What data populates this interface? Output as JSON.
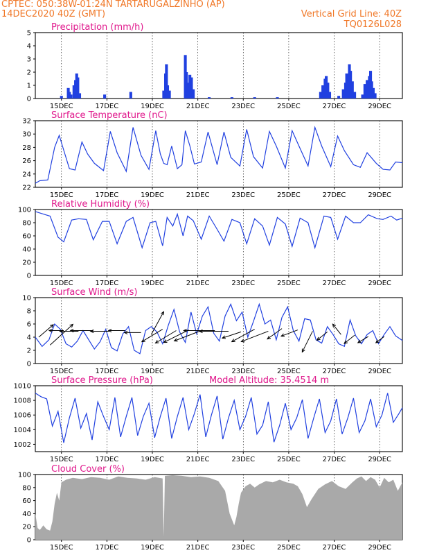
{
  "header": {
    "line1": "CPTEC:   050:38W-01:24N  TARTARUGALZINHO (AP)",
    "line2": "14DEC2020 40Z (GMT)",
    "grid_note": "Vertical Grid Line: 40Z",
    "code": "TQ0126L028"
  },
  "colors": {
    "line": "#2040e0",
    "bar": "#2040e0",
    "cloud": "#a9a9a9",
    "title": "#e0188c",
    "header": "#f07828"
  },
  "chart_data": [
    {
      "id": "precip",
      "type": "bar",
      "title": "Precipitation (mm/h)",
      "ylim": [
        0,
        5
      ],
      "yticks": [
        "0",
        "1",
        "2",
        "3",
        "4",
        "5"
      ],
      "xticks": [
        "15DEC",
        "17DEC",
        "19DEC",
        "21DEC",
        "23DEC",
        "25DEC",
        "27DEC",
        "29DEC"
      ],
      "xrange": [
        -1.15,
        15
      ],
      "x_unit": "days from 15DEC",
      "step_hours": 3,
      "events": [
        {
          "x": 0.0,
          "v": 0.2
        },
        {
          "x": 0.3,
          "v": 0.8
        },
        {
          "x": 0.35,
          "v": 0.5
        },
        {
          "x": 0.42,
          "v": 0.3
        },
        {
          "x": 0.55,
          "v": 1.0
        },
        {
          "x": 0.62,
          "v": 1.4
        },
        {
          "x": 0.67,
          "v": 1.9
        },
        {
          "x": 0.72,
          "v": 1.6
        },
        {
          "x": 0.8,
          "v": 0.4
        },
        {
          "x": 1.9,
          "v": 0.3
        },
        {
          "x": 3.05,
          "v": 0.5
        },
        {
          "x": 4.5,
          "v": 0.6
        },
        {
          "x": 4.58,
          "v": 1.9
        },
        {
          "x": 4.62,
          "v": 2.6
        },
        {
          "x": 4.67,
          "v": 1.0
        },
        {
          "x": 4.75,
          "v": 0.6
        },
        {
          "x": 5.45,
          "v": 3.3
        },
        {
          "x": 5.5,
          "v": 2.0
        },
        {
          "x": 5.55,
          "v": 1.1
        },
        {
          "x": 5.6,
          "v": 1.2
        },
        {
          "x": 5.65,
          "v": 1.8
        },
        {
          "x": 5.72,
          "v": 1.6
        },
        {
          "x": 5.8,
          "v": 0.7
        },
        {
          "x": 6.5,
          "v": 0.1
        },
        {
          "x": 7.5,
          "v": 0.1
        },
        {
          "x": 8.5,
          "v": 0.1
        },
        {
          "x": 9.5,
          "v": 0.1
        },
        {
          "x": 11.4,
          "v": 0.5
        },
        {
          "x": 11.5,
          "v": 1.0
        },
        {
          "x": 11.6,
          "v": 1.5
        },
        {
          "x": 11.65,
          "v": 1.7
        },
        {
          "x": 11.72,
          "v": 1.2
        },
        {
          "x": 11.8,
          "v": 0.5
        },
        {
          "x": 12.2,
          "v": 0.2
        },
        {
          "x": 12.4,
          "v": 0.7
        },
        {
          "x": 12.5,
          "v": 1.2
        },
        {
          "x": 12.55,
          "v": 1.9
        },
        {
          "x": 12.62,
          "v": 1.4
        },
        {
          "x": 12.67,
          "v": 2.6
        },
        {
          "x": 12.72,
          "v": 2.1
        },
        {
          "x": 12.8,
          "v": 1.3
        },
        {
          "x": 12.9,
          "v": 0.5
        },
        {
          "x": 13.25,
          "v": 0.3
        },
        {
          "x": 13.35,
          "v": 1.1
        },
        {
          "x": 13.45,
          "v": 1.4
        },
        {
          "x": 13.5,
          "v": 1.0
        },
        {
          "x": 13.55,
          "v": 1.7
        },
        {
          "x": 13.6,
          "v": 2.1
        },
        {
          "x": 13.65,
          "v": 1.3
        },
        {
          "x": 13.72,
          "v": 0.8
        },
        {
          "x": 13.8,
          "v": 0.4
        }
      ]
    },
    {
      "id": "temp",
      "type": "line",
      "title": "Surface Temperature (nC)",
      "ylim": [
        22,
        32
      ],
      "yticks": [
        "22",
        "24",
        "26",
        "28",
        "30",
        "32"
      ],
      "xticks": [
        "15DEC",
        "17DEC",
        "19DEC",
        "21DEC",
        "23DEC",
        "25DEC",
        "27DEC",
        "29DEC"
      ],
      "xrange": [
        -1.15,
        15
      ],
      "x": [
        -1.15,
        -0.95,
        -0.6,
        -0.3,
        -0.1,
        0.15,
        0.35,
        0.6,
        0.9,
        1.15,
        1.45,
        1.85,
        2.15,
        2.45,
        2.85,
        3.15,
        3.5,
        3.85,
        4.15,
        4.35,
        4.5,
        4.65,
        4.85,
        5.1,
        5.3,
        5.45,
        5.65,
        5.85,
        6.15,
        6.45,
        6.85,
        7.15,
        7.45,
        7.85,
        8.15,
        8.45,
        8.85,
        9.15,
        9.45,
        9.85,
        10.15,
        10.45,
        10.85,
        11.15,
        11.45,
        11.85,
        12.15,
        12.45,
        12.85,
        13.15,
        13.45,
        13.85,
        14.15,
        14.45,
        14.7,
        15.0
      ],
      "y": [
        22.6,
        23.0,
        23.1,
        28.0,
        29.8,
        27.0,
        24.8,
        24.6,
        28.8,
        27.0,
        25.6,
        24.5,
        30.4,
        27.2,
        24.4,
        31.0,
        26.8,
        24.7,
        30.5,
        27.0,
        25.6,
        25.4,
        28.2,
        24.8,
        25.4,
        30.5,
        28.2,
        25.5,
        25.8,
        30.3,
        25.4,
        30.3,
        26.5,
        25.2,
        30.7,
        26.6,
        24.9,
        30.4,
        28.2,
        24.9,
        30.5,
        28.2,
        25.2,
        31.0,
        28.2,
        25.1,
        29.7,
        27.5,
        25.4,
        25.0,
        27.2,
        25.6,
        24.7,
        24.6,
        25.8,
        25.7
      ]
    },
    {
      "id": "rh",
      "type": "line",
      "title": "Relative Humidity (%)",
      "ylim": [
        0,
        100
      ],
      "yticks": [
        "0",
        "20",
        "40",
        "60",
        "80",
        "100"
      ],
      "xticks": [
        "15DEC",
        "17DEC",
        "19DEC",
        "21DEC",
        "23DEC",
        "25DEC",
        "27DEC",
        "29DEC"
      ],
      "xrange": [
        -1.15,
        15
      ],
      "x": [
        -1.15,
        -0.7,
        -0.5,
        -0.15,
        0.1,
        0.45,
        0.75,
        1.1,
        1.4,
        1.8,
        2.1,
        2.45,
        2.85,
        3.15,
        3.55,
        3.9,
        4.15,
        4.45,
        4.65,
        4.9,
        5.1,
        5.35,
        5.55,
        5.8,
        6.15,
        6.5,
        6.85,
        7.15,
        7.5,
        7.85,
        8.15,
        8.5,
        8.85,
        9.15,
        9.5,
        9.85,
        10.15,
        10.5,
        10.85,
        11.15,
        11.55,
        11.85,
        12.15,
        12.5,
        12.85,
        13.15,
        13.5,
        13.9,
        14.15,
        14.5,
        14.75,
        15.0
      ],
      "y": [
        97,
        92,
        90,
        58,
        51,
        84,
        86,
        85,
        54,
        82,
        82,
        48,
        82,
        88,
        42,
        80,
        82,
        45,
        88,
        75,
        93,
        60,
        90,
        83,
        55,
        90,
        70,
        52,
        85,
        80,
        48,
        86,
        75,
        46,
        88,
        78,
        44,
        87,
        80,
        42,
        90,
        88,
        55,
        90,
        80,
        80,
        92,
        86,
        85,
        90,
        84,
        87
      ]
    },
    {
      "id": "wind",
      "type": "line",
      "title": "Surface Wind (m/s)",
      "ylim": [
        0,
        10
      ],
      "yticks": [
        "0",
        "2",
        "4",
        "6",
        "8",
        "10"
      ],
      "xticks": [
        "15DEC",
        "17DEC",
        "19DEC",
        "21DEC",
        "23DEC",
        "25DEC",
        "27DEC",
        "29DEC"
      ],
      "xrange": [
        -1.15,
        15
      ],
      "x": [
        -1.15,
        -0.85,
        -0.55,
        -0.3,
        -0.05,
        0.2,
        0.45,
        0.7,
        0.95,
        1.2,
        1.45,
        1.7,
        1.95,
        2.2,
        2.45,
        2.7,
        2.95,
        3.2,
        3.45,
        3.7,
        3.95,
        4.2,
        4.45,
        4.7,
        4.95,
        5.2,
        5.45,
        5.7,
        5.95,
        6.2,
        6.45,
        6.7,
        6.95,
        7.2,
        7.45,
        7.7,
        7.95,
        8.2,
        8.45,
        8.7,
        8.95,
        9.2,
        9.45,
        9.7,
        9.95,
        10.2,
        10.45,
        10.7,
        10.95,
        11.2,
        11.45,
        11.7,
        11.95,
        12.2,
        12.45,
        12.7,
        12.95,
        13.2,
        13.45,
        13.7,
        13.95,
        14.2,
        14.45,
        14.7,
        15.0
      ],
      "y": [
        4.0,
        2.6,
        3.6,
        6.0,
        5.2,
        3.0,
        2.5,
        3.4,
        5.0,
        3.6,
        2.2,
        3.3,
        5.2,
        2.4,
        1.9,
        4.5,
        5.6,
        2.0,
        1.5,
        5.0,
        5.6,
        4.8,
        3.0,
        5.8,
        8.2,
        4.8,
        3.2,
        7.8,
        4.5,
        7.2,
        8.6,
        4.6,
        3.4,
        7.2,
        9.0,
        6.5,
        7.8,
        4.0,
        6.4,
        9.0,
        6.0,
        6.6,
        3.6,
        7.0,
        8.6,
        5.0,
        3.4,
        6.8,
        6.6,
        3.6,
        3.1,
        5.6,
        4.4,
        3.0,
        2.6,
        6.6,
        4.2,
        3.0,
        4.4,
        5.0,
        3.0,
        4.4,
        5.6,
        4.2,
        3.5
      ],
      "arrows": [
        {
          "x": -1.0,
          "y": 4.0,
          "u": 0.7,
          "v": 0.6
        },
        {
          "x": -0.5,
          "y": 2.8,
          "u": 1.1,
          "v": 1.0
        },
        {
          "x": 0.1,
          "y": 5.0,
          "u": -0.7,
          "v": 0.0
        },
        {
          "x": 0.75,
          "y": 4.9,
          "u": -0.9,
          "v": 0.0
        },
        {
          "x": 1.4,
          "y": 5.0,
          "u": -1.1,
          "v": 0.0
        },
        {
          "x": 2.1,
          "y": 4.9,
          "u": -0.9,
          "v": 0.0
        },
        {
          "x": 2.8,
          "y": 5.0,
          "u": -0.8,
          "v": 0.0
        },
        {
          "x": 3.5,
          "y": 4.7,
          "u": -0.8,
          "v": 0.0
        },
        {
          "x": 3.95,
          "y": 4.4,
          "u": 0.6,
          "v": 1.1
        },
        {
          "x": 4.45,
          "y": 5.2,
          "u": -1.0,
          "v": -0.6
        },
        {
          "x": 5.05,
          "y": 5.0,
          "u": -1.0,
          "v": -0.6
        },
        {
          "x": 5.6,
          "y": 5.1,
          "u": -1.2,
          "v": -0.6
        },
        {
          "x": 6.15,
          "y": 5.0,
          "u": -1.3,
          "v": -0.5
        },
        {
          "x": 6.75,
          "y": 5.0,
          "u": -1.5,
          "v": 0.0
        },
        {
          "x": 7.35,
          "y": 4.9,
          "u": -1.4,
          "v": 0.0
        },
        {
          "x": 7.9,
          "y": 4.8,
          "u": -0.9,
          "v": -0.3
        },
        {
          "x": 8.5,
          "y": 5.2,
          "u": -1.1,
          "v": -0.6
        },
        {
          "x": 9.1,
          "y": 4.9,
          "u": -1.3,
          "v": -0.5
        },
        {
          "x": 9.7,
          "y": 5.3,
          "u": -0.7,
          "v": -0.5
        },
        {
          "x": 10.4,
          "y": 5.1,
          "u": -0.8,
          "v": -0.3
        },
        {
          "x": 11.05,
          "y": 4.9,
          "u": -0.5,
          "v": -1.0
        },
        {
          "x": 11.7,
          "y": 4.8,
          "u": -0.5,
          "v": -0.4
        },
        {
          "x": 12.3,
          "y": 4.4,
          "u": -0.4,
          "v": 0.5
        },
        {
          "x": 12.9,
          "y": 4.3,
          "u": -0.5,
          "v": -0.4
        },
        {
          "x": 13.5,
          "y": 4.1,
          "u": -0.5,
          "v": -0.3
        },
        {
          "x": 14.2,
          "y": 4.1,
          "u": -0.4,
          "v": -0.3
        }
      ]
    },
    {
      "id": "press",
      "type": "line",
      "title": "Surface Pressure (hPa)",
      "subtitle": "Model Altitude: 35.4514 m",
      "ylim": [
        1001,
        1010
      ],
      "yticks": [
        "1002",
        "1004",
        "1006",
        "1008",
        "1010"
      ],
      "ytick_values": [
        1002,
        1004,
        1006,
        1008,
        1010
      ],
      "xticks": [
        "15DEC",
        "17DEC",
        "19DEC",
        "21DEC",
        "23DEC",
        "25DEC",
        "27DEC",
        "29DEC"
      ],
      "xrange": [
        -1.15,
        15
      ],
      "x": [
        -1.15,
        -0.9,
        -0.65,
        -0.4,
        -0.15,
        0.1,
        0.35,
        0.6,
        0.85,
        1.1,
        1.35,
        1.6,
        1.85,
        2.1,
        2.35,
        2.6,
        2.85,
        3.1,
        3.35,
        3.6,
        3.85,
        4.1,
        4.35,
        4.6,
        4.85,
        5.1,
        5.35,
        5.6,
        5.85,
        6.1,
        6.35,
        6.6,
        6.85,
        7.1,
        7.35,
        7.6,
        7.85,
        8.1,
        8.35,
        8.6,
        8.85,
        9.1,
        9.35,
        9.6,
        9.85,
        10.1,
        10.35,
        10.6,
        10.85,
        11.1,
        11.35,
        11.6,
        11.85,
        12.1,
        12.35,
        12.6,
        12.85,
        13.1,
        13.35,
        13.6,
        13.85,
        14.1,
        14.35,
        14.6,
        14.85,
        15.0
      ],
      "y": [
        1009.0,
        1008.5,
        1008.2,
        1004.5,
        1006.5,
        1002.2,
        1005.6,
        1008.3,
        1004.2,
        1006.2,
        1002.6,
        1007.8,
        1005.8,
        1004.0,
        1008.4,
        1003.0,
        1005.8,
        1008.4,
        1003.2,
        1005.8,
        1007.6,
        1002.9,
        1005.8,
        1008.3,
        1002.8,
        1005.8,
        1008.4,
        1004.0,
        1006.2,
        1008.8,
        1003.0,
        1006.0,
        1008.6,
        1002.7,
        1005.6,
        1008.0,
        1004.0,
        1005.8,
        1008.4,
        1003.4,
        1004.6,
        1007.8,
        1002.3,
        1004.6,
        1007.6,
        1004.0,
        1005.6,
        1008.1,
        1002.8,
        1005.6,
        1008.2,
        1003.6,
        1005.2,
        1008.2,
        1003.4,
        1005.6,
        1008.3,
        1003.6,
        1005.2,
        1008.2,
        1004.4,
        1006.0,
        1009.0,
        1005.0,
        1006.2,
        1007.0
      ]
    },
    {
      "id": "cloud",
      "type": "area",
      "title": "Cloud Cover (%)",
      "ylim": [
        0,
        100
      ],
      "yticks": [
        "0",
        "20",
        "40",
        "60",
        "80",
        "100"
      ],
      "xticks": [
        "15DEC",
        "17DEC",
        "19DEC",
        "21DEC",
        "23DEC",
        "25DEC",
        "27DEC",
        "29DEC"
      ],
      "xrange": [
        -1.15,
        15
      ],
      "x": [
        -1.15,
        -1.05,
        -0.95,
        -0.8,
        -0.65,
        -0.5,
        -0.4,
        -0.3,
        -0.2,
        -0.1,
        0.0,
        0.2,
        0.5,
        0.9,
        1.3,
        1.7,
        2.1,
        2.5,
        2.9,
        3.3,
        3.7,
        4.1,
        4.45,
        4.5,
        4.55,
        4.9,
        5.3,
        5.7,
        6.1,
        6.5,
        6.9,
        7.2,
        7.4,
        7.6,
        7.7,
        7.8,
        7.9,
        8.1,
        8.3,
        8.5,
        8.7,
        9.0,
        9.3,
        9.6,
        9.9,
        10.2,
        10.4,
        10.6,
        10.8,
        11.0,
        11.3,
        11.6,
        11.9,
        12.2,
        12.5,
        12.8,
        13.0,
        13.2,
        13.4,
        13.6,
        13.8,
        14.0,
        14.2,
        14.4,
        14.6,
        14.8,
        15.0
      ],
      "y": [
        40,
        18,
        15,
        22,
        16,
        14,
        28,
        55,
        72,
        60,
        88,
        92,
        95,
        93,
        96,
        95,
        92,
        97,
        95,
        94,
        92,
        96,
        94,
        5,
        98,
        99,
        98,
        96,
        97,
        95,
        90,
        75,
        40,
        22,
        35,
        55,
        72,
        82,
        86,
        80,
        85,
        90,
        88,
        92,
        88,
        86,
        82,
        70,
        50,
        62,
        78,
        85,
        90,
        82,
        78,
        88,
        94,
        97,
        90,
        96,
        92,
        80,
        95,
        88,
        92,
        75,
        88
      ]
    }
  ]
}
